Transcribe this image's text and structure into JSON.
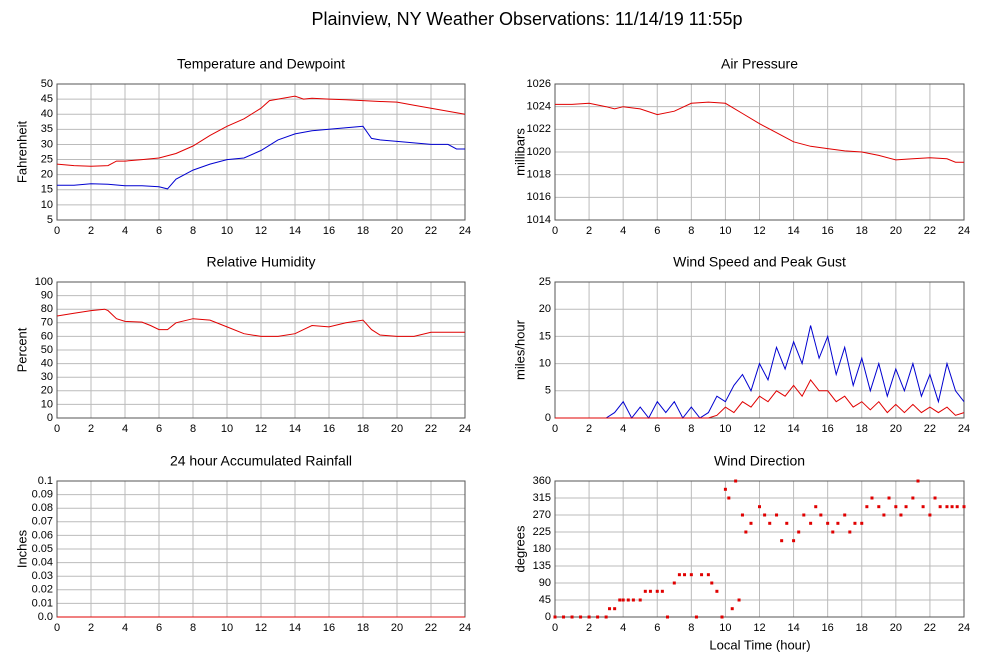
{
  "title": "Plainview, NY Weather Observations: 11/14/19 11:55p",
  "xlabel": "Local Time (hour)",
  "chart_data": [
    {
      "type": "line",
      "title": "Temperature and Dewpoint",
      "ylabel": "Fahrenheit",
      "xlim": [
        0,
        24
      ],
      "xticks": [
        0,
        2,
        4,
        6,
        8,
        10,
        12,
        14,
        16,
        18,
        20,
        22,
        24
      ],
      "ylim": [
        5,
        50
      ],
      "yticks": [
        5,
        10,
        15,
        20,
        25,
        30,
        35,
        40,
        45,
        50
      ],
      "grid": true,
      "series": [
        {
          "color": "#e00000",
          "x": [
            0,
            1,
            2,
            3,
            3.5,
            4,
            5,
            6,
            7,
            8,
            9,
            10,
            11,
            12,
            12.5,
            13,
            14,
            14.5,
            15,
            16,
            17,
            18,
            19,
            20,
            21,
            22,
            23,
            24
          ],
          "values": [
            23.5,
            23,
            22.8,
            23,
            24.5,
            24.5,
            25,
            25.5,
            27,
            29.5,
            33,
            36,
            38.5,
            42,
            44.5,
            45,
            46,
            45,
            45.3,
            45,
            44.8,
            44.5,
            44.2,
            44,
            43,
            42,
            41,
            40
          ]
        },
        {
          "color": "#0000d0",
          "x": [
            0,
            1,
            2,
            3,
            4,
            5,
            6,
            6.5,
            7,
            8,
            9,
            10,
            11,
            12,
            13,
            14,
            15,
            16,
            17,
            18,
            18.5,
            19,
            20,
            21,
            22,
            23,
            23.5,
            24
          ],
          "values": [
            16.5,
            16.5,
            17,
            16.8,
            16.3,
            16.3,
            16,
            15.3,
            18.5,
            21.5,
            23.5,
            25,
            25.5,
            28,
            31.5,
            33.5,
            34.5,
            35,
            35.5,
            36,
            32,
            31.5,
            31,
            30.5,
            30,
            30,
            28.5,
            28.5
          ]
        }
      ]
    },
    {
      "type": "line",
      "title": "Air Pressure",
      "ylabel": "millibars",
      "xlim": [
        0,
        24
      ],
      "xticks": [
        0,
        2,
        4,
        6,
        8,
        10,
        12,
        14,
        16,
        18,
        20,
        22,
        24
      ],
      "ylim": [
        1014,
        1026
      ],
      "yticks": [
        1014,
        1016,
        1018,
        1020,
        1022,
        1024,
        1026
      ],
      "grid": true,
      "series": [
        {
          "color": "#e00000",
          "x": [
            0,
            1,
            2,
            3,
            3.5,
            4,
            5,
            6,
            7,
            8,
            9,
            10,
            11,
            12,
            13,
            14,
            15,
            16,
            17,
            18,
            19,
            20,
            21,
            22,
            23,
            23.5,
            24
          ],
          "values": [
            1024.2,
            1024.2,
            1024.3,
            1024.0,
            1023.8,
            1024,
            1023.8,
            1023.3,
            1023.6,
            1024.3,
            1024.4,
            1024.3,
            1023.4,
            1022.5,
            1021.7,
            1020.9,
            1020.5,
            1020.3,
            1020.1,
            1020,
            1019.7,
            1019.3,
            1019.4,
            1019.5,
            1019.4,
            1019.1,
            1019.1
          ]
        }
      ]
    },
    {
      "type": "line",
      "title": "Relative Humidity",
      "ylabel": "Percent",
      "xlim": [
        0,
        24
      ],
      "xticks": [
        0,
        2,
        4,
        6,
        8,
        10,
        12,
        14,
        16,
        18,
        20,
        22,
        24
      ],
      "ylim": [
        0,
        100
      ],
      "yticks": [
        0,
        10,
        20,
        30,
        40,
        50,
        60,
        70,
        80,
        90,
        100
      ],
      "grid": true,
      "series": [
        {
          "color": "#e00000",
          "x": [
            0,
            1,
            2,
            2.8,
            3,
            3.5,
            4,
            5,
            5.5,
            6,
            6.5,
            7,
            8,
            9,
            10,
            11,
            12,
            13,
            14,
            14.5,
            15,
            16,
            17,
            18,
            18.5,
            19,
            20,
            21,
            22,
            23,
            24
          ],
          "values": [
            75,
            77,
            79,
            80,
            79,
            73,
            71,
            70.5,
            68,
            65,
            65,
            70,
            73,
            72,
            67,
            62,
            60,
            60,
            62,
            65,
            68,
            67,
            70,
            72,
            65,
            61,
            60,
            60,
            63,
            63,
            63
          ]
        }
      ]
    },
    {
      "type": "line",
      "title": "Wind Speed and Peak Gust",
      "ylabel": "miles/hour",
      "xlim": [
        0,
        24
      ],
      "xticks": [
        0,
        2,
        4,
        6,
        8,
        10,
        12,
        14,
        16,
        18,
        20,
        22,
        24
      ],
      "ylim": [
        0,
        25
      ],
      "yticks": [
        0,
        5,
        10,
        15,
        20,
        25
      ],
      "grid": true,
      "series": [
        {
          "color": "#0000d0",
          "x": [
            0,
            1,
            2,
            3,
            3.5,
            4,
            4.5,
            5,
            5.5,
            6,
            6.5,
            7,
            7.5,
            8,
            8.5,
            9,
            9.5,
            10,
            10.5,
            11,
            11.5,
            12,
            12.5,
            13,
            13.5,
            14,
            14.5,
            15,
            15.5,
            16,
            16.5,
            17,
            17.5,
            18,
            18.5,
            19,
            19.5,
            20,
            20.5,
            21,
            21.5,
            22,
            22.5,
            23,
            23.5,
            24
          ],
          "values": [
            0,
            0,
            0,
            0,
            1,
            3,
            0,
            2,
            0,
            3,
            1,
            3,
            0,
            2,
            0,
            1,
            4,
            3,
            6,
            8,
            5,
            10,
            7,
            13,
            9,
            14,
            10,
            17,
            11,
            15,
            8,
            13,
            6,
            11,
            5,
            10,
            4,
            9,
            5,
            10,
            4,
            8,
            3,
            10,
            5,
            3
          ]
        },
        {
          "color": "#e00000",
          "x": [
            0,
            1,
            2,
            3,
            3.5,
            4,
            4.5,
            5,
            5.5,
            6,
            6.5,
            7,
            7.5,
            8,
            8.5,
            9,
            9.5,
            10,
            10.5,
            11,
            11.5,
            12,
            12.5,
            13,
            13.5,
            14,
            14.5,
            15,
            15.5,
            16,
            16.5,
            17,
            17.5,
            18,
            18.5,
            19,
            19.5,
            20,
            20.5,
            21,
            21.5,
            22,
            22.5,
            23,
            23.5,
            24
          ],
          "values": [
            0,
            0,
            0,
            0,
            0,
            0,
            0,
            0,
            0,
            0,
            0,
            0,
            0,
            0,
            0,
            0,
            0.5,
            2,
            1,
            3,
            2,
            4,
            3,
            5,
            4,
            6,
            4,
            7,
            5,
            5,
            3,
            4,
            2,
            3,
            1.5,
            3,
            1,
            2.5,
            1,
            2.5,
            1,
            2,
            1,
            2,
            0.5,
            1
          ]
        }
      ]
    },
    {
      "type": "line",
      "title": "24 hour Accumulated Rainfall",
      "ylabel": "Inches",
      "xlim": [
        0,
        24
      ],
      "xticks": [
        0,
        2,
        4,
        6,
        8,
        10,
        12,
        14,
        16,
        18,
        20,
        22,
        24
      ],
      "ylim": [
        0,
        0.1
      ],
      "yticks": [
        {
          "value": 0,
          "label": "0.0"
        },
        0.01,
        0.02,
        0.03,
        0.04,
        0.05,
        0.06,
        0.07,
        0.08,
        0.09,
        0.1
      ],
      "grid": true,
      "series": [
        {
          "color": "#e00000",
          "x": [
            0,
            24
          ],
          "values": [
            0,
            0
          ]
        }
      ]
    },
    {
      "type": "scatter",
      "title": "Wind Direction",
      "ylabel": "degrees",
      "xlim": [
        0,
        24
      ],
      "xticks": [
        0,
        2,
        4,
        6,
        8,
        10,
        12,
        14,
        16,
        18,
        20,
        22,
        24
      ],
      "ylim": [
        0,
        360
      ],
      "yticks": [
        0,
        45,
        90,
        135,
        180,
        225,
        270,
        315,
        360
      ],
      "grid": true,
      "series": [
        {
          "color": "#e00000",
          "x": [
            0,
            0.5,
            1,
            1.5,
            2,
            2.5,
            3,
            3.2,
            3.5,
            3.8,
            4,
            4.3,
            4.6,
            5,
            5.3,
            5.6,
            6,
            6.3,
            6.6,
            7,
            7.3,
            7.6,
            8,
            8.3,
            8.6,
            9,
            9.2,
            9.5,
            9.8,
            10,
            10.2,
            10.4,
            10.6,
            10.8,
            11,
            11.2,
            11.5,
            12,
            12.3,
            12.6,
            13,
            13.3,
            13.6,
            14,
            14.3,
            14.6,
            15,
            15.3,
            15.6,
            16,
            16.3,
            16.6,
            17,
            17.3,
            17.6,
            18,
            18.3,
            18.6,
            19,
            19.3,
            19.6,
            20,
            20.3,
            20.6,
            21,
            21.3,
            21.6,
            22,
            22.3,
            22.6,
            23,
            23.3,
            23.6,
            24
          ],
          "values": [
            0,
            0,
            0,
            0,
            0,
            0,
            0,
            22,
            22,
            45,
            45,
            45,
            45,
            45,
            68,
            68,
            68,
            68,
            0,
            90,
            112,
            112,
            112,
            0,
            112,
            112,
            90,
            68,
            0,
            338,
            315,
            22,
            360,
            45,
            270,
            225,
            248,
            292,
            270,
            248,
            270,
            202,
            248,
            202,
            225,
            270,
            248,
            292,
            270,
            248,
            225,
            248,
            270,
            225,
            248,
            248,
            292,
            315,
            292,
            270,
            315,
            292,
            270,
            292,
            315,
            360,
            292,
            270,
            315,
            292,
            292,
            292,
            292,
            292
          ]
        }
      ]
    }
  ]
}
